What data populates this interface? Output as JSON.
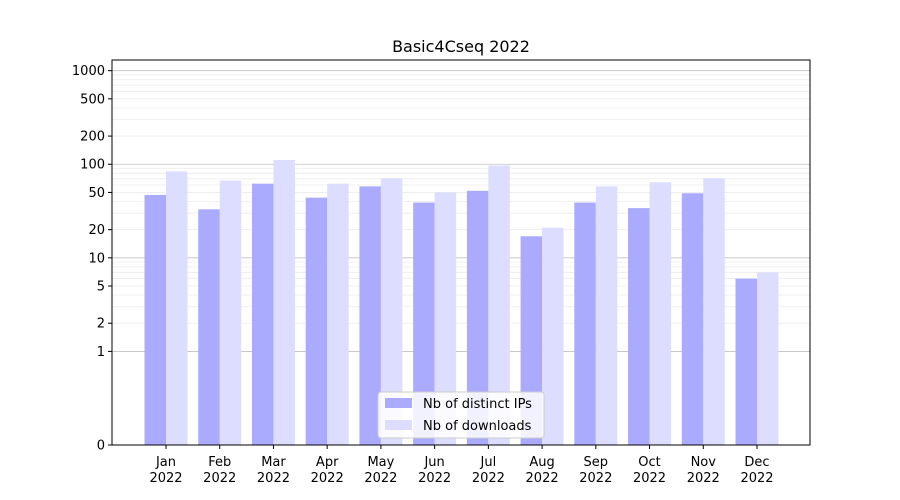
{
  "chart_data": {
    "type": "bar",
    "title": "Basic4Cseq 2022",
    "xlabel": "",
    "ylabel": "",
    "yscale": "symlog",
    "ylim": [
      0,
      1300
    ],
    "y_ticks": [
      0,
      1,
      2,
      5,
      10,
      20,
      50,
      100,
      200,
      500,
      1000
    ],
    "y_tick_labels": [
      "0",
      "1",
      "2",
      "5",
      "10",
      "20",
      "50",
      "100",
      "200",
      "500",
      "1000"
    ],
    "categories": [
      [
        "Jan",
        "2022"
      ],
      [
        "Feb",
        "2022"
      ],
      [
        "Mar",
        "2022"
      ],
      [
        "Apr",
        "2022"
      ],
      [
        "May",
        "2022"
      ],
      [
        "Jun",
        "2022"
      ],
      [
        "Jul",
        "2022"
      ],
      [
        "Aug",
        "2022"
      ],
      [
        "Sep",
        "2022"
      ],
      [
        "Oct",
        "2022"
      ],
      [
        "Nov",
        "2022"
      ],
      [
        "Dec",
        "2022"
      ]
    ],
    "series": [
      {
        "name": "Nb of distinct IPs",
        "color": "#aaaaff",
        "values": [
          47,
          33,
          62,
          44,
          58,
          39,
          52,
          17,
          39,
          34,
          49,
          6
        ]
      },
      {
        "name": "Nb of downloads",
        "color": "#ddddff",
        "values": [
          84,
          67,
          111,
          62,
          71,
          50,
          97,
          21,
          58,
          64,
          71,
          7
        ]
      }
    ],
    "grid": true,
    "legend_position": "bottom-center"
  }
}
